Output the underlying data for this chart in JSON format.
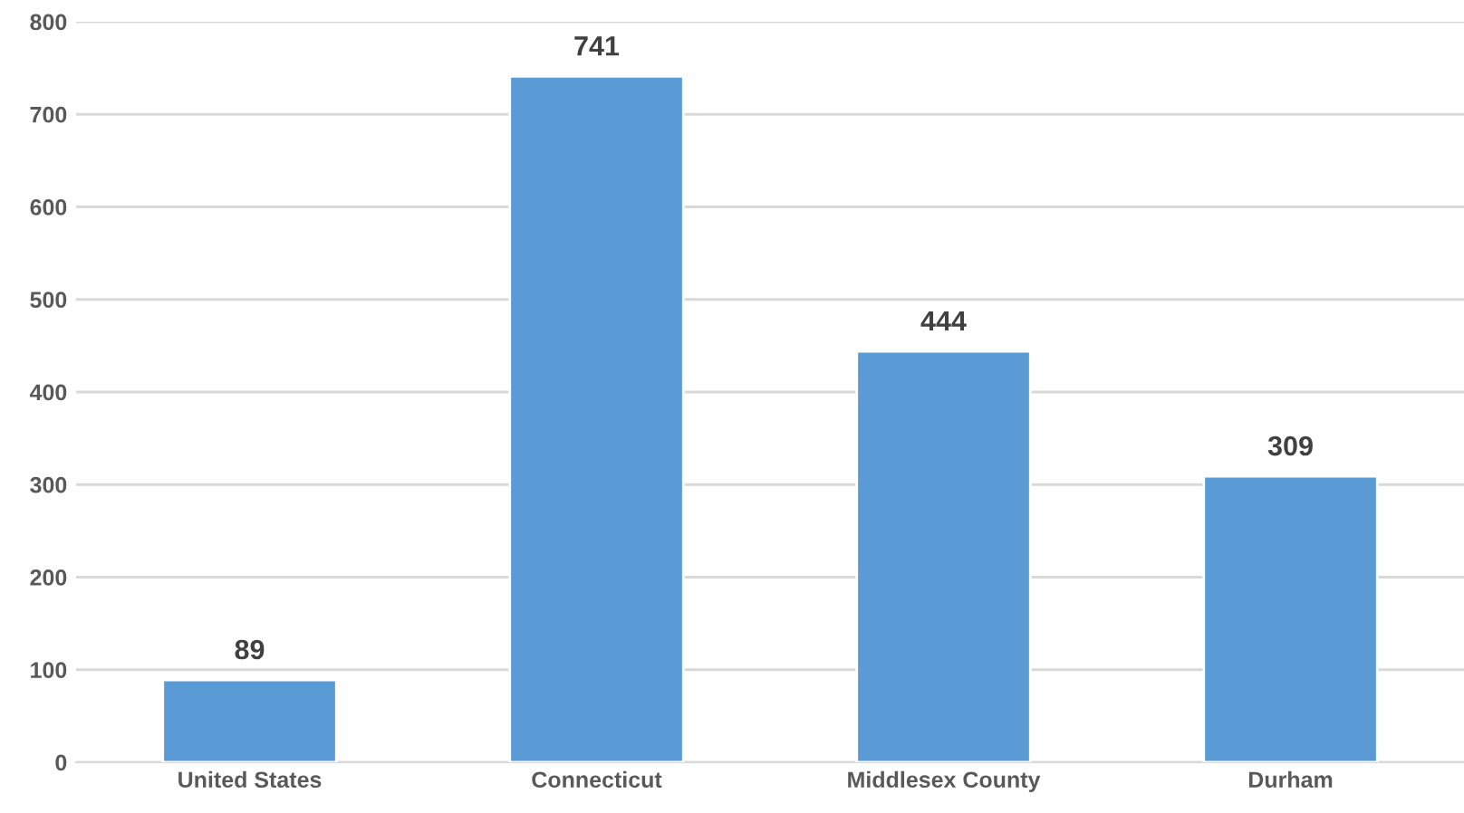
{
  "chart_data": {
    "type": "bar",
    "categories": [
      "United States",
      "Connecticut",
      "Middlesex County",
      "Durham"
    ],
    "values": [
      89,
      741,
      444,
      309
    ],
    "color": "#5b9bd5",
    "ylim": [
      0,
      800
    ],
    "yticks": [
      0,
      100,
      200,
      300,
      400,
      500,
      600,
      700,
      800
    ],
    "grid": "y",
    "data_labels": true
  }
}
